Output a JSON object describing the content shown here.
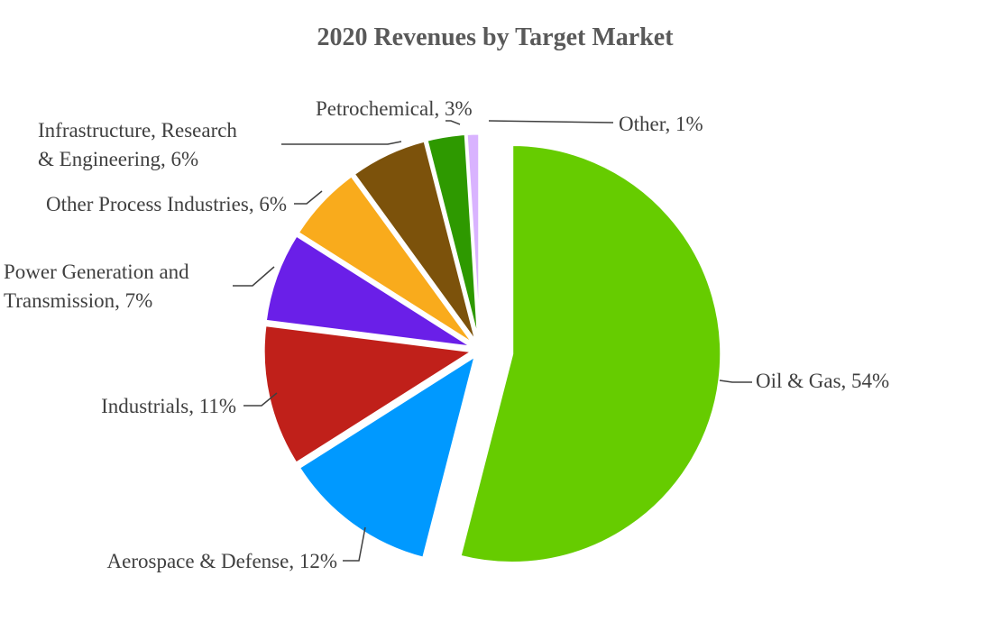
{
  "chart_data": {
    "type": "pie",
    "title": "2020 Revenues by Target Market",
    "start_angle": "12 o'clock",
    "direction": "clockwise",
    "exploded": [
      "Oil & Gas"
    ],
    "legend": "none (data labels with leader lines)",
    "slices": [
      {
        "label": "Oil & Gas",
        "value": 54,
        "display": "Oil & Gas, 54%",
        "color": "#66CC00"
      },
      {
        "label": "Aerospace & Defense",
        "value": 12,
        "display": "Aerospace & Defense, 12%",
        "color": "#0099FF"
      },
      {
        "label": "Industrials",
        "value": 11,
        "display": "Industrials, 11%",
        "color": "#C0201A"
      },
      {
        "label": "Power Generation and Transmission",
        "value": 7,
        "display": [
          "Power Generation and",
          "Transmission, 7%"
        ],
        "color": "#6A1FE8"
      },
      {
        "label": "Other Process Industries",
        "value": 6,
        "display": "Other Process Industries, 6%",
        "color": "#F9AB1C"
      },
      {
        "label": "Infrastructure, Research & Engineering",
        "value": 6,
        "display": [
          "Infrastructure, Research",
          "& Engineering, 6%"
        ],
        "color": "#7C520B"
      },
      {
        "label": "Petrochemical",
        "value": 3,
        "display": "Petrochemical, 3%",
        "color": "#2E9900"
      },
      {
        "label": "Other",
        "value": 1,
        "display": "Other, 1%",
        "color": "#D9B3FF"
      }
    ]
  }
}
